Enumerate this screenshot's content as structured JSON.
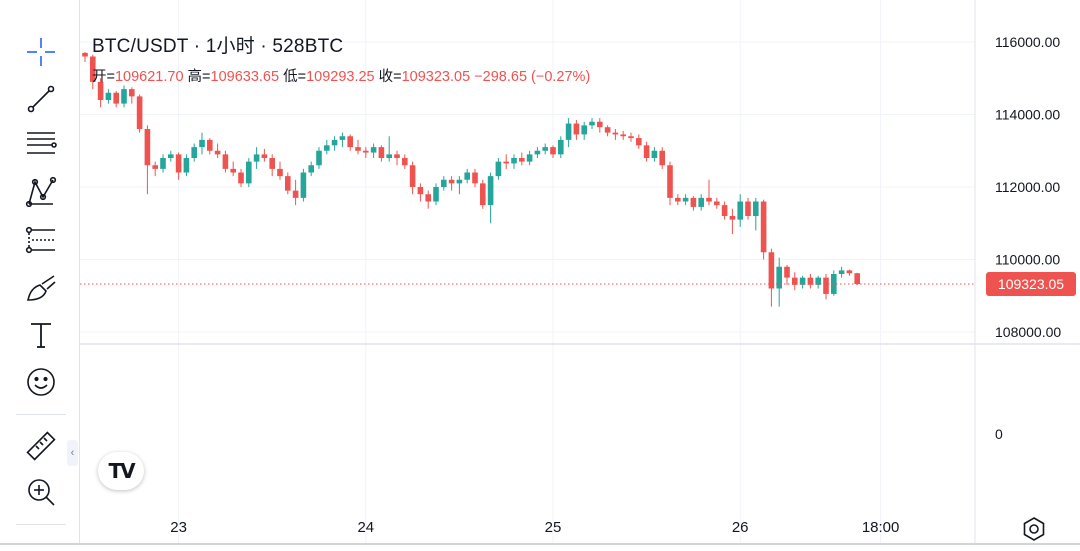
{
  "symbol": {
    "title": "BTC/USDT · 1小时 · 528BTC",
    "open_label": "开=",
    "open": "109621.70",
    "high_label": "高=",
    "high": "109633.65",
    "low_label": "低=",
    "low": "109293.25",
    "close_label": "收=",
    "close": "109323.05",
    "change": "−298.65 (−0.27%)"
  },
  "toolbar": {
    "tools": [
      {
        "name": "crosshair-icon"
      },
      {
        "name": "trend-line-icon"
      },
      {
        "name": "horizontal-lines-icon"
      },
      {
        "name": "pattern-icon"
      },
      {
        "name": "fib-retracement-icon"
      },
      {
        "name": "brush-icon"
      },
      {
        "name": "text-tool-icon"
      },
      {
        "name": "emoji-icon"
      },
      {
        "name": "ruler-icon"
      },
      {
        "name": "zoom-in-icon"
      }
    ],
    "collapse_glyph": "‹"
  },
  "logo_text": "TV",
  "colors": {
    "up": "#26a69a",
    "down": "#ef5350",
    "grid": "#f0f3fa",
    "price_tag": "#ef5350"
  },
  "chart_data": {
    "type": "candlestick",
    "symbol": "BTC/USDT",
    "interval": "1小时",
    "y_ticks": [
      116000,
      114000,
      112000,
      110000,
      108000
    ],
    "y_tick_labels": [
      "116000.00",
      "114000.00",
      "112000.00",
      "110000.00",
      "108000.00"
    ],
    "ylim": [
      107500,
      116500
    ],
    "volume_pane_label": "0",
    "x_ticks": [
      {
        "label": "23",
        "i": 12
      },
      {
        "label": "24",
        "i": 36
      },
      {
        "label": "25",
        "i": 60
      },
      {
        "label": "26",
        "i": 84
      },
      {
        "label": "18:00",
        "i": 102
      }
    ],
    "last_price": "109323.05",
    "grid": true,
    "candles": [
      [
        115700,
        115720,
        115450,
        115600
      ],
      [
        115600,
        115650,
        114700,
        114900
      ],
      [
        114900,
        115000,
        114200,
        114400
      ],
      [
        114400,
        114700,
        114300,
        114600
      ],
      [
        114600,
        114650,
        114200,
        114300
      ],
      [
        114300,
        114800,
        114200,
        114700
      ],
      [
        114700,
        114750,
        114300,
        114500
      ],
      [
        114500,
        114550,
        113500,
        113600
      ],
      [
        113600,
        113700,
        111800,
        112600
      ],
      [
        112600,
        112700,
        112300,
        112500
      ],
      [
        112500,
        112900,
        112400,
        112800
      ],
      [
        112800,
        113000,
        112700,
        112900
      ],
      [
        112900,
        112950,
        112200,
        112400
      ],
      [
        112400,
        112900,
        112300,
        112800
      ],
      [
        112800,
        113200,
        112700,
        113100
      ],
      [
        113100,
        113500,
        112900,
        113300
      ],
      [
        113300,
        113350,
        112900,
        113000
      ],
      [
        113000,
        113200,
        112800,
        112900
      ],
      [
        112900,
        113000,
        112400,
        112500
      ],
      [
        112500,
        112700,
        112300,
        112400
      ],
      [
        112400,
        112500,
        112000,
        112100
      ],
      [
        112100,
        112800,
        112000,
        112700
      ],
      [
        112700,
        113100,
        112500,
        112900
      ],
      [
        112900,
        113050,
        112700,
        112800
      ],
      [
        112800,
        112900,
        112300,
        112500
      ],
      [
        112500,
        112700,
        112200,
        112300
      ],
      [
        112300,
        112400,
        111800,
        111900
      ],
      [
        111900,
        112200,
        111500,
        111700
      ],
      [
        111700,
        112500,
        111600,
        112400
      ],
      [
        112400,
        112700,
        112300,
        112600
      ],
      [
        112600,
        113100,
        112500,
        113000
      ],
      [
        113000,
        113300,
        112900,
        113150
      ],
      [
        113150,
        113400,
        113000,
        113300
      ],
      [
        113300,
        113500,
        113100,
        113400
      ],
      [
        113400,
        113450,
        113000,
        113100
      ],
      [
        113100,
        113300,
        112900,
        113000
      ],
      [
        113000,
        113100,
        112800,
        112950
      ],
      [
        112950,
        113200,
        112800,
        113100
      ],
      [
        113100,
        113150,
        112700,
        112800
      ],
      [
        112800,
        113400,
        112700,
        112900
      ],
      [
        112900,
        113000,
        112600,
        112800
      ],
      [
        112800,
        112900,
        112500,
        112600
      ],
      [
        112600,
        112700,
        111800,
        112000
      ],
      [
        112000,
        112100,
        111600,
        111800
      ],
      [
        111800,
        111900,
        111400,
        111600
      ],
      [
        111600,
        112100,
        111500,
        112000
      ],
      [
        112000,
        112300,
        111900,
        112200
      ],
      [
        112200,
        112300,
        111900,
        112100
      ],
      [
        112100,
        112300,
        111800,
        112200
      ],
      [
        112200,
        112500,
        112100,
        112400
      ],
      [
        112400,
        112500,
        112000,
        112100
      ],
      [
        112100,
        112200,
        111400,
        111500
      ],
      [
        111500,
        112400,
        111000,
        112300
      ],
      [
        112300,
        112800,
        112200,
        112700
      ],
      [
        112700,
        112900,
        112500,
        112650
      ],
      [
        112650,
        112900,
        112500,
        112800
      ],
      [
        112800,
        112950,
        112600,
        112700
      ],
      [
        112700,
        113000,
        112600,
        112900
      ],
      [
        112900,
        113100,
        112800,
        113000
      ],
      [
        113000,
        113200,
        112900,
        113100
      ],
      [
        113100,
        113150,
        112800,
        112900
      ],
      [
        112900,
        113400,
        112800,
        113300
      ],
      [
        113300,
        113900,
        113100,
        113750
      ],
      [
        113750,
        113850,
        113300,
        113450
      ],
      [
        113450,
        113800,
        113300,
        113700
      ],
      [
        113700,
        113900,
        113600,
        113800
      ],
      [
        113800,
        113900,
        113500,
        113650
      ],
      [
        113650,
        113700,
        113400,
        113500
      ],
      [
        113500,
        113600,
        113300,
        113450
      ],
      [
        113450,
        113550,
        113300,
        113400
      ],
      [
        113400,
        113500,
        113250,
        113350
      ],
      [
        113350,
        113450,
        113050,
        113150
      ],
      [
        113150,
        113250,
        112700,
        112800
      ],
      [
        112800,
        113100,
        112700,
        113000
      ],
      [
        113000,
        113100,
        112500,
        112600
      ],
      [
        112600,
        112700,
        111500,
        111700
      ],
      [
        111700,
        111800,
        111500,
        111600
      ],
      [
        111600,
        111800,
        111500,
        111700
      ],
      [
        111700,
        111750,
        111350,
        111450
      ],
      [
        111450,
        111800,
        111350,
        111700
      ],
      [
        111700,
        112200,
        111500,
        111600
      ],
      [
        111600,
        111700,
        111400,
        111500
      ],
      [
        111500,
        111600,
        111100,
        111200
      ],
      [
        111200,
        111400,
        110700,
        111100
      ],
      [
        111100,
        111800,
        110900,
        111600
      ],
      [
        111600,
        111700,
        111100,
        111200
      ],
      [
        111200,
        111700,
        110800,
        111600
      ],
      [
        111600,
        111650,
        110000,
        110200
      ],
      [
        110200,
        110300,
        108700,
        109200
      ],
      [
        109200,
        110050,
        108700,
        109800
      ],
      [
        109800,
        109850,
        109300,
        109500
      ],
      [
        109500,
        109650,
        109150,
        109300
      ],
      [
        109300,
        109550,
        109200,
        109500
      ],
      [
        109500,
        109600,
        109200,
        109300
      ],
      [
        109300,
        109550,
        109200,
        109500
      ],
      [
        109500,
        109600,
        108900,
        109050
      ],
      [
        109050,
        109700,
        109000,
        109600
      ],
      [
        109600,
        109800,
        109500,
        109700
      ],
      [
        109700,
        109720,
        109550,
        109620
      ],
      [
        109621.7,
        109633.65,
        109293.25,
        109323.05
      ]
    ]
  }
}
